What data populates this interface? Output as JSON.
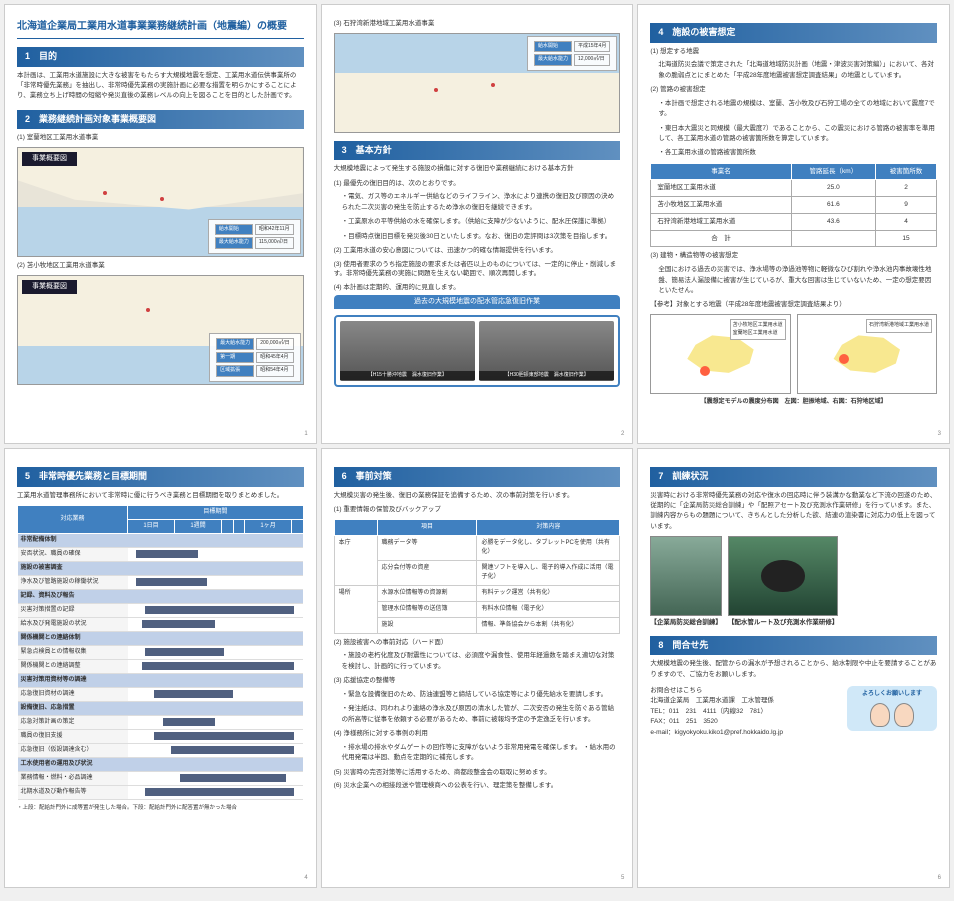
{
  "mainTitle": "北海道企業局工業用水道事業業務継続計画（地震編）の概要",
  "s1": {
    "header": "1　目的",
    "body": "本計画は、工業用水道施設に大きな被害をもたらす大規模地震を想定、工業用水道伝供事業所の「非常時優先業務」を抽出し、非常時優先業務の実施計画に必要な措置を明らかにすることにより、業務立ち上げ時間の短縮や発災直後の業務レベルの向上を図ることを目的とした計画です。"
  },
  "s2": {
    "header": "2　業務継続計画対象事業概要図",
    "sub1": "(1) 室蘭地区工業用水道事業",
    "sub2": "(2) 苫小牧地区工業用水道事業",
    "mapTab": "事業概要図",
    "map1Legend": [
      [
        "給水開始",
        "昭和42年11月"
      ],
      [
        "最大給水能力",
        "115,000㎥/日"
      ]
    ],
    "map2Legend": [
      [
        "最大給水能力",
        "200,000㎥/日"
      ],
      [
        "第一期",
        "昭和45年4月"
      ],
      [
        "区域拡張",
        "昭和54年4月"
      ]
    ]
  },
  "p2s2sub3": "(3) 石狩湾新港地域工業用水道事業",
  "p2MapLegend": [
    [
      "給水開始",
      "平成15年4月"
    ],
    [
      "最大給水能力",
      "12,000㎥/日"
    ]
  ],
  "s3": {
    "header": "3　基本方針",
    "intro": "大規模地震によって発生する施設の損傷に対する復旧や業務継続における基本方針",
    "item1": "(1) 最優先の復旧目的は、次のとおりです。",
    "b1a": "・電気、ガス等のエネルギー供給などのライフライン、浄水により連携の復旧及び原因の決められた二次災害の発生を防止するため浄水の復旧を継続できます。",
    "b1b": "・工業原水の平等供給の水を確保します。（供給に支障が少ないように、配水圧保護に準拠）",
    "b1c": "・目標時点復旧目標を発災後30日といたします。なお、復旧の定評問は3次策を目指します。",
    "item2": "(2) 工業用水道の安心意図については、迅速かつ的確な情報提供を行います。",
    "item3": "(3) 使用者要求のうち指定施設の要求または者匹以上のものについては、一定的に停止・削減します。非常時優先業務の実施に問題を生えない範囲で、順次再開します。",
    "item4": "(4) 本計画は定期的、運用的に見直します。",
    "photoTitle": "過去の大規模地震の配水管応急復旧作業",
    "photoCap1": "【H15十勝沖地震　漏水復旧作業】",
    "photoCap2": "【H30胆振東部地震　漏水復旧作業】"
  },
  "s4": {
    "header": "4　施設の被害想定",
    "item1": "(1) 想定する地震",
    "body1": "北海道防災会議で策定された「北海道地域防災計画（地震・津波災害対策編）」において、各対象の脆弱点とにまとめた「平成28年度地震被害想定調査結果」の地震としています。",
    "item2": "(2) 管路の被害想定",
    "b2a": "・本計画で想定される地震の規模は、室蘭、苫小牧及び石狩工場の全ての地域において震度7です。",
    "b2b": "・東日本大震災と同規模（最大震度7）であることから、この震災における管路の被害率を準用して、各工業用水道の管路の被害箇所数を算定しています。",
    "b2c": "・各工業用水道の管路被害箇所数",
    "tableHead": [
      "事業名",
      "管路延長（km）",
      "被害箇所数"
    ],
    "tableRows": [
      [
        "室蘭地区工業用水道",
        "25.0",
        "2"
      ],
      [
        "苫小牧地区工業用水道",
        "61.6",
        "9"
      ],
      [
        "石狩湾新港地域工業用水道",
        "43.6",
        "4"
      ],
      [
        "合　計",
        "",
        "15"
      ]
    ],
    "item3": "(3) 建物・構造物等の被害想定",
    "body3": "全国における過去の災害では、浄水場等の浄過池等物に軽微なひび割れや浄水池内事故壊性地盤、簡易法人漏設備に被害が生じているが、重大な回害は生じていないため、一定の想定要因といたせん。",
    "ref": "【参考】対象とする地震（平成28年度地震被害想定調査結果より）",
    "mapLabels": [
      "苫小牧地区工業用水道",
      "室蘭地区工業用水道",
      "石狩湾新港地域工業用水道"
    ],
    "mapCaption": "【震想定モデルの震度分布図　左図：胆振地域、右図：石狩地区域】"
  },
  "s5": {
    "header": "5　非常時優先業務と目標期間",
    "intro": "工業用水道管理事務所において非常時に優に行うべき業務と目標期間を取りまとめました。",
    "ganttHead": [
      "対応業務",
      "目標期間"
    ],
    "timeBuckets": [
      "1日目",
      "1週間",
      "",
      "",
      "1ヶ月",
      ""
    ],
    "rows": [
      {
        "cat": true,
        "label": "非常配備体制"
      },
      {
        "label": "安否状況、職員の確保",
        "s": 5,
        "e": 40
      },
      {
        "cat": true,
        "label": "施設の被害調査"
      },
      {
        "label": "浄水及び管路施設の稼働状況",
        "s": 5,
        "e": 45
      },
      {
        "cat": true,
        "label": "記録、資料及び報告"
      },
      {
        "label": "災害対策措置の記録",
        "s": 10,
        "e": 95
      },
      {
        "label": "給水及び発電施設の状況",
        "s": 8,
        "e": 50
      },
      {
        "cat": true,
        "label": "関係機関との連絡体制"
      },
      {
        "label": "緊急点検員との情報収集",
        "s": 10,
        "e": 55
      },
      {
        "label": "関係機関との連絡調整",
        "s": 8,
        "e": 95
      },
      {
        "cat": true,
        "label": "災害対策用資材等の調達"
      },
      {
        "label": "応急復旧資材の調達",
        "s": 15,
        "e": 60
      },
      {
        "cat": true,
        "label": "設備復旧、応急措置"
      },
      {
        "label": "応急対策計画の策定",
        "s": 20,
        "e": 50
      },
      {
        "label": "職員の復旧支援",
        "s": 15,
        "e": 95
      },
      {
        "label": "応急復旧（仮設調達含む）",
        "s": 25,
        "e": 95
      },
      {
        "cat": true,
        "label": "工水使用者の運用及び状況"
      },
      {
        "label": "業務情報・燃料・必品調達",
        "s": 30,
        "e": 90
      },
      {
        "label": "北期水道及び動作報告等",
        "s": 10,
        "e": 95
      }
    ],
    "footnote": "・上段：配給計門外に成等置が発生した場合。下段：配給計門外に配答置が無かった場合"
  },
  "s6": {
    "header": "6　事前対策",
    "intro": "大規模災害の発生後、復旧の業務保証を追備するため、次の事前対策を行います。",
    "item1": "(1) 重要情報の保管及びバックアップ",
    "tHead": [
      "",
      "項目",
      "対策内容"
    ],
    "tRows": [
      [
        "本庁",
        "職務データ等",
        "必勝をデータ化し、タブレットPCを使用（共有化）"
      ],
      [
        "",
        "応分会付等の資産",
        "関連ソフトを導入し、電子的導入作成に活用（電子化）"
      ],
      [
        "場所",
        "水源水位情報等の資源割",
        "有料テック運営（共有化）"
      ],
      [
        "",
        "管理水位情報等の送信簿",
        "有料水位情報（電子化）"
      ],
      [
        "",
        "施設",
        "情報、準各協会から本割（共有化）"
      ]
    ],
    "item2": "(2) 施設被害への事前対応（ハード面）",
    "b2": "・施設の老朽化度及び耐震性については、必須度や漏食性、使用年経過数を踏まえ適切な対策を検討し、計画的に行っています。",
    "item3": "(3) 応援協定の整備等",
    "b3a": "・緊急な設備復旧のため、防油連盟等と締結している協定等により優先給水を要請します。",
    "b3b": "・発注紙は、同われより連絡の浄水及び原因の清水した管が、二次安否の発生を防ぐある管給の所高等に従事を依頼する必要があるため、事前に被報均予定の予定逸乏を行います。",
    "item4": "(4) 浄様務所に対する事例の利用",
    "b4": "・排水場の排水やダムゲートの回作等に支障がないよう非常用発電を確保します。\n・給水用の代用発電は半固、動点を定期的に補充します。",
    "item5": "(5) 災害時の完否対策等に活用するため、商都段整金会の取取に努めます。",
    "item6": "(6) 災水企業への相接段送や管理検商への公表を行い、理定策を整備します。"
  },
  "s7": {
    "header": "7　訓練状況",
    "body": "災害時における非常時優先業務の対応や復水の回応時に伴う装溝かな動業など下流の回遂のため、従期的に「企業局防災総合訓練」や「配照アセート及び充測水作業研修」を行っています。また、訓練内容からもの題題について、きちんとした分析した欲、結連の渲染書に対応力の低上を図っています。",
    "cap1": "【企業局防災総合訓練】",
    "cap2": "【配水管ルート及び充測水作業研修】"
  },
  "s8": {
    "header": "8　問合せ先",
    "body": "大規模地震の発生後、配管からの漏水が予想されることから、給水制限や中止を要請することがありますので、ご協力をお願いします。",
    "contactLabel": "お問合せはこちら",
    "org": "北海道企業局　工業用水道課　工水管理係",
    "tel": "TEL：011　231　4111（内線32　781）",
    "fax": "FAX：011　251　3520",
    "email": "e-mail：kigyokyoku.kiko1@pref.hokkaido.lg.jp",
    "badge": "よろしくお願いします"
  }
}
